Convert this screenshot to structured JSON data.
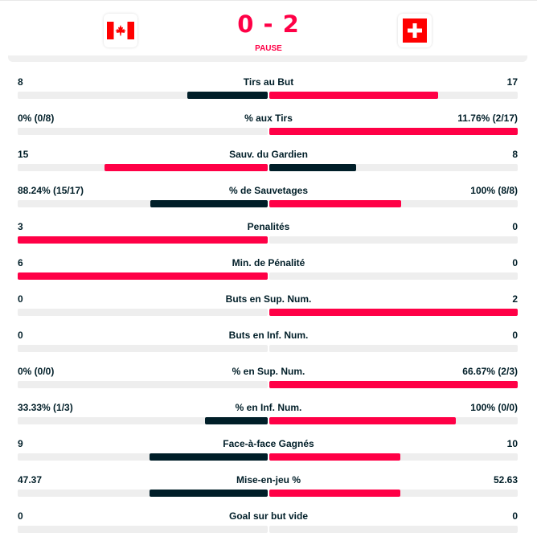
{
  "match": {
    "score": "0 - 2",
    "status": "PAUSE",
    "home_flag": "canada-flag",
    "away_flag": "switzerland-flag"
  },
  "colors": {
    "leader": "#ff0046",
    "trailer": "#001e28",
    "track": "#eeeeee",
    "canada_red": "#ff0000",
    "swiss_red": "#ff0000"
  },
  "stats": [
    {
      "label": "Tirs au But",
      "home": "8",
      "away": "17",
      "home_share": 0.32,
      "away_share": 0.68,
      "leader": "away"
    },
    {
      "label": "% aux Tirs",
      "home": "0% (0/8)",
      "away": "11.76% (2/17)",
      "home_share": 0.0,
      "away_share": 1.0,
      "leader": "away"
    },
    {
      "label": "Sauv. du Gardien",
      "home": "15",
      "away": "8",
      "home_share": 0.652,
      "away_share": 0.348,
      "leader": "home"
    },
    {
      "label": "% de Sauvetages",
      "home": "88.24% (15/17)",
      "away": "100% (8/8)",
      "home_share": 0.469,
      "away_share": 0.531,
      "leader": "away"
    },
    {
      "label": "Penalités",
      "home": "3",
      "away": "0",
      "home_share": 1.0,
      "away_share": 0.0,
      "leader": "home"
    },
    {
      "label": "Min. de Pénalité",
      "home": "6",
      "away": "0",
      "home_share": 1.0,
      "away_share": 0.0,
      "leader": "home"
    },
    {
      "label": "Buts en Sup. Num.",
      "home": "0",
      "away": "2",
      "home_share": 0.0,
      "away_share": 1.0,
      "leader": "away"
    },
    {
      "label": "Buts en Inf. Num.",
      "home": "0",
      "away": "0",
      "home_share": 0.0,
      "away_share": 0.0,
      "leader": "none"
    },
    {
      "label": "% en Sup. Num.",
      "home": "0% (0/0)",
      "away": "66.67% (2/3)",
      "home_share": 0.0,
      "away_share": 1.0,
      "leader": "away"
    },
    {
      "label": "% en Inf. Num.",
      "home": "33.33% (1/3)",
      "away": "100% (0/0)",
      "home_share": 0.25,
      "away_share": 0.75,
      "leader": "away"
    },
    {
      "label": "Face-à-face Gagnés",
      "home": "9",
      "away": "10",
      "home_share": 0.474,
      "away_share": 0.526,
      "leader": "away"
    },
    {
      "label": "Mise-en-jeu %",
      "home": "47.37",
      "away": "52.63",
      "home_share": 0.474,
      "away_share": 0.526,
      "leader": "away"
    },
    {
      "label": "Goal sur but vide",
      "home": "0",
      "away": "0",
      "home_share": 0.0,
      "away_share": 0.0,
      "leader": "none"
    }
  ]
}
